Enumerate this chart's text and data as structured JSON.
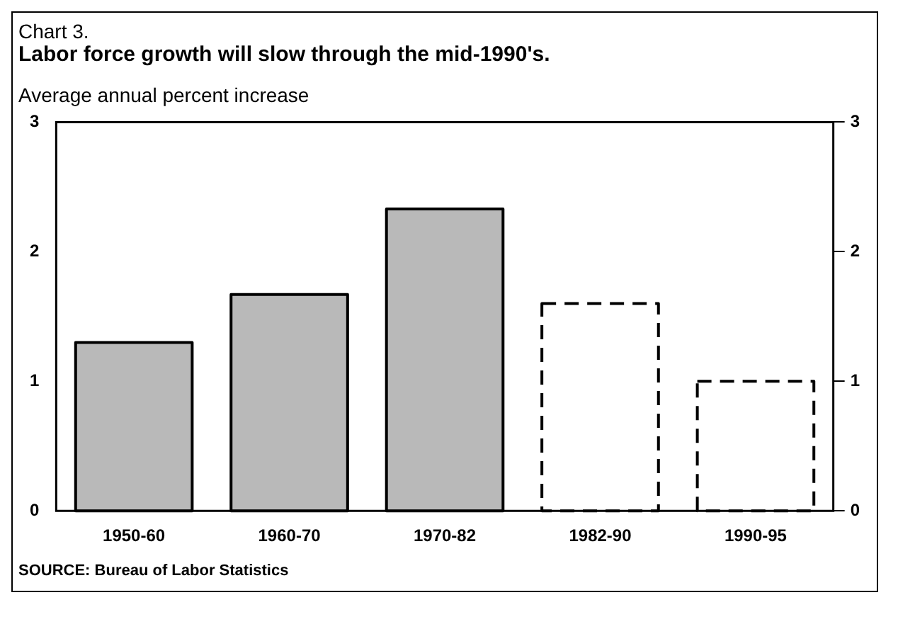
{
  "chart_data": {
    "type": "bar",
    "title": "Chart 3.",
    "subtitle": "Labor force growth will slow through the mid-1990's.",
    "annotations": [
      "Average annual percent increase",
      "SOURCE: Bureau of Labor Statistics"
    ],
    "categories": [
      "1950-60",
      "1960-70",
      "1970-82",
      "1982-90",
      "1990-95"
    ],
    "series": [
      {
        "color": "#b9b9b9",
        "line_style": "solid",
        "values": [
          1.3,
          1.67,
          2.33,
          null,
          null
        ]
      },
      {
        "color": "#ffffff",
        "line_style": "dashed",
        "values": [
          null,
          null,
          null,
          1.6,
          1.0
        ]
      }
    ],
    "ylim": [
      0,
      3
    ],
    "yticks": [
      0,
      1,
      2,
      3
    ],
    "y2lim": [
      0,
      3
    ],
    "y2ticks": [
      0,
      1,
      2,
      3
    ],
    "legend": false
  }
}
